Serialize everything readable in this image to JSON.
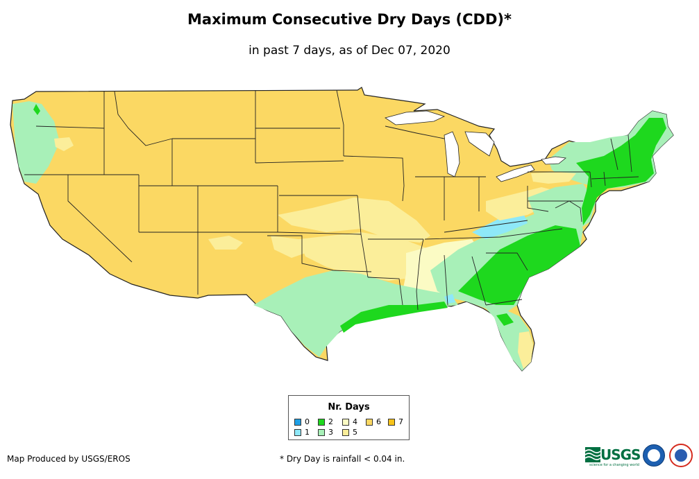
{
  "title": "Maximum Consecutive Dry Days (CDD)*",
  "subtitle": "in past 7 days, as of Dec 07, 2020",
  "legend": {
    "title": "Nr. Days",
    "items": [
      {
        "label": "0",
        "color": "#1ea0e6"
      },
      {
        "label": "1",
        "color": "#8ee8f8"
      },
      {
        "label": "2",
        "color": "#1ed81e"
      },
      {
        "label": "3",
        "color": "#a8f0b8"
      },
      {
        "label": "4",
        "color": "#fbfbc4"
      },
      {
        "label": "5",
        "color": "#fbee9a"
      },
      {
        "label": "6",
        "color": "#fbd863"
      },
      {
        "label": "7",
        "color": "#f7c31a"
      }
    ]
  },
  "credits": {
    "producer": "Map Produced by USGS/EROS",
    "footnote": "* Dry Day is rainfall < 0.04 in."
  },
  "logos": {
    "usgs": "USGS",
    "usgs_tagline": "science for a changing world",
    "noaa": "noaa",
    "nws": "nws"
  }
}
